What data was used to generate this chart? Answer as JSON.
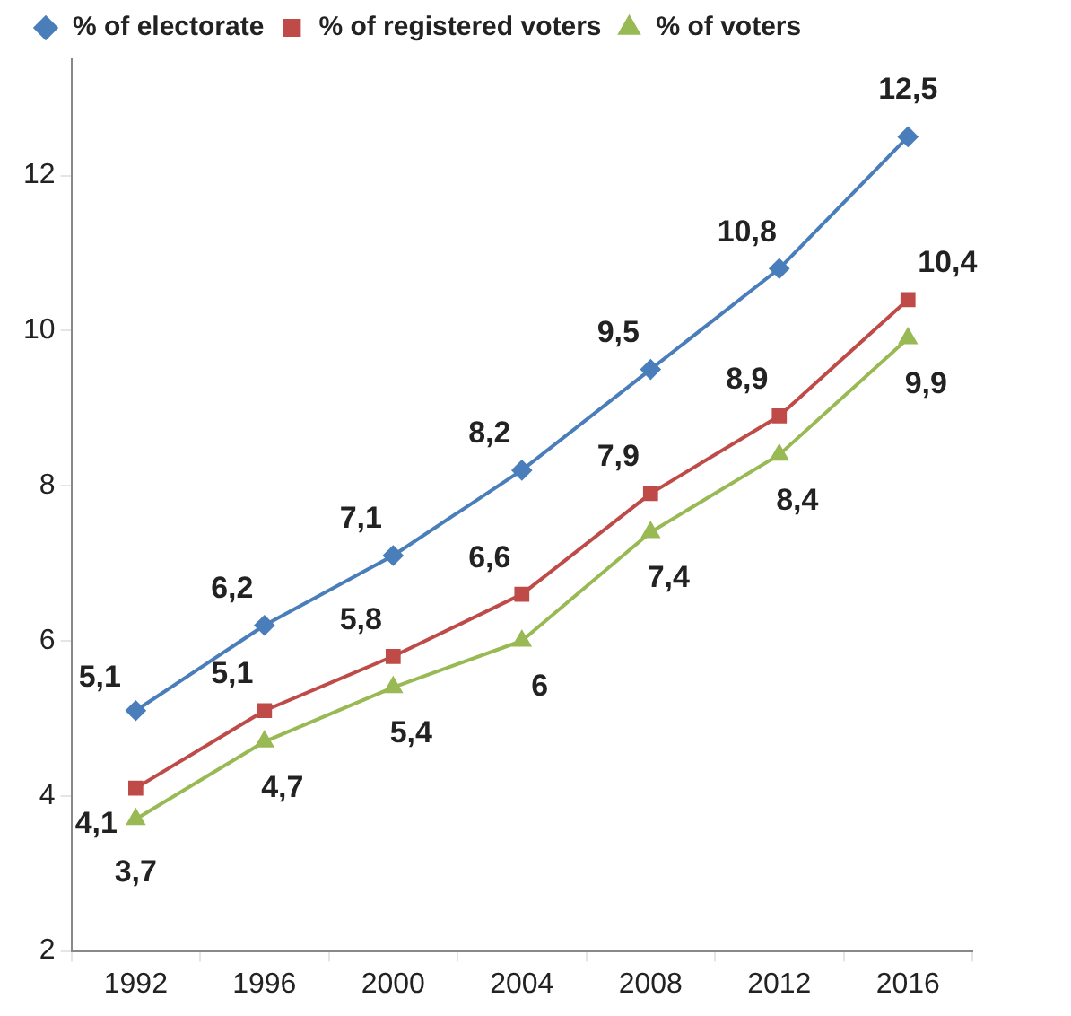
{
  "chart_data": {
    "type": "line",
    "categories": [
      "1992",
      "1996",
      "2000",
      "2004",
      "2008",
      "2012",
      "2016"
    ],
    "series": [
      {
        "name": "% of electorate",
        "color": "#4a7ebb",
        "marker": "diamond",
        "values": [
          5.1,
          6.2,
          7.1,
          8.2,
          9.5,
          10.8,
          12.5
        ],
        "value_labels": [
          "5,1",
          "6,2",
          "7,1",
          "8,2",
          "9,5",
          "10,8",
          "12,5"
        ]
      },
      {
        "name": "% of registered voters",
        "color": "#be4b48",
        "marker": "square",
        "values": [
          4.1,
          5.1,
          5.8,
          6.6,
          7.9,
          8.9,
          10.4
        ],
        "value_labels": [
          "4,1",
          "5,1",
          "5,8",
          "6,6",
          "7,9",
          "8,9",
          "10,4"
        ]
      },
      {
        "name": "% of voters",
        "color": "#98b954",
        "marker": "triangle",
        "values": [
          3.7,
          4.7,
          5.4,
          6,
          7.4,
          8.4,
          9.9
        ],
        "value_labels": [
          "3,7",
          "4,7",
          "5,4",
          "6",
          "7,4",
          "8,4",
          "9,9"
        ]
      }
    ],
    "ylim": [
      2,
      13.5
    ],
    "yticks": [
      2,
      4,
      6,
      8,
      10,
      12
    ],
    "grid": false,
    "legend": "top left"
  }
}
